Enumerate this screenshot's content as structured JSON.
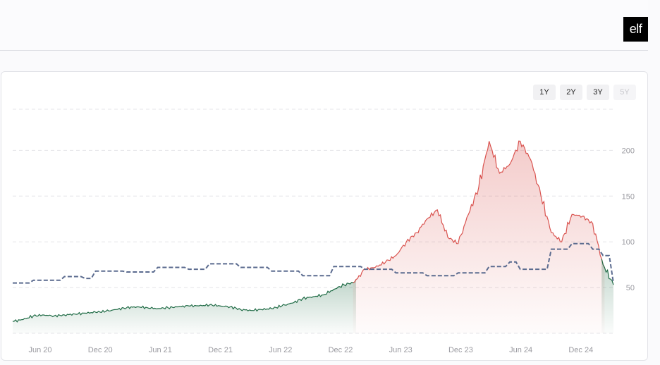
{
  "header": {
    "logo_text": "elf"
  },
  "range_buttons": [
    {
      "label": "1Y",
      "enabled": true
    },
    {
      "label": "2Y",
      "enabled": true
    },
    {
      "label": "3Y",
      "enabled": true
    },
    {
      "label": "5Y",
      "enabled": false
    }
  ],
  "colors": {
    "up_line": "#1f6b45",
    "down_line": "#d9534f",
    "benchmark_line": "#5b6b8f",
    "grid": "#e4e4e8"
  },
  "chart_data": {
    "type": "line",
    "x_ticks": [
      "Jun 20",
      "Dec 20",
      "Jun 21",
      "Dec 21",
      "Jun 22",
      "Dec 22",
      "Jun 23",
      "Dec 23",
      "Jun 24",
      "Dec 24"
    ],
    "y_ticks": [
      50,
      100,
      150,
      200
    ],
    "x_range": [
      "2020-04",
      "2025-02"
    ],
    "ylim": [
      0,
      245
    ],
    "grid": true,
    "series": [
      {
        "style": "solid",
        "points": [
          [
            "2020-04",
            13
          ],
          [
            "2020-05",
            15
          ],
          [
            "2020-06",
            19
          ],
          [
            "2020-07",
            20
          ],
          [
            "2020-08",
            19
          ],
          [
            "2020-09",
            20
          ],
          [
            "2020-10",
            21
          ],
          [
            "2020-11",
            22
          ],
          [
            "2020-12",
            23
          ],
          [
            "2021-01",
            24
          ],
          [
            "2021-02",
            26
          ],
          [
            "2021-03",
            28
          ],
          [
            "2021-04",
            29
          ],
          [
            "2021-05",
            28
          ],
          [
            "2021-06",
            27
          ],
          [
            "2021-07",
            28
          ],
          [
            "2021-08",
            29
          ],
          [
            "2021-09",
            30
          ],
          [
            "2021-10",
            30
          ],
          [
            "2021-11",
            31
          ],
          [
            "2021-12",
            30
          ],
          [
            "2022-01",
            29
          ],
          [
            "2022-02",
            26
          ],
          [
            "2022-03",
            25
          ],
          [
            "2022-04",
            26
          ],
          [
            "2022-05",
            27
          ],
          [
            "2022-06",
            30
          ],
          [
            "2022-07",
            33
          ],
          [
            "2022-08",
            38
          ],
          [
            "2022-09",
            40
          ],
          [
            "2022-10",
            42
          ],
          [
            "2022-11",
            48
          ],
          [
            "2022-12",
            53
          ],
          [
            "2023-01",
            56
          ],
          [
            "2023-02",
            70
          ],
          [
            "2023-03",
            72
          ],
          [
            "2023-04",
            78
          ],
          [
            "2023-05",
            85
          ],
          [
            "2023-06",
            100
          ],
          [
            "2023-07",
            110
          ],
          [
            "2023-08",
            125
          ],
          [
            "2023-09",
            135
          ],
          [
            "2023-10",
            105
          ],
          [
            "2023-11",
            98
          ],
          [
            "2023-12",
            130
          ],
          [
            "2024-01",
            160
          ],
          [
            "2024-02",
            210
          ],
          [
            "2024-03",
            175
          ],
          [
            "2024-04",
            185
          ],
          [
            "2024-05",
            210
          ],
          [
            "2024-06",
            190
          ],
          [
            "2024-07",
            150
          ],
          [
            "2024-08",
            110
          ],
          [
            "2024-09",
            100
          ],
          [
            "2024-10",
            130
          ],
          [
            "2024-11",
            128
          ],
          [
            "2024-12",
            120
          ],
          [
            "2025-01",
            75
          ],
          [
            "2025-02",
            53
          ]
        ]
      },
      {
        "style": "dashed",
        "points": [
          [
            "2020-04",
            55
          ],
          [
            "2020-06",
            58
          ],
          [
            "2020-09",
            62
          ],
          [
            "2020-11",
            60
          ],
          [
            "2020-12",
            68
          ],
          [
            "2021-03",
            67
          ],
          [
            "2021-06",
            72
          ],
          [
            "2021-09",
            70
          ],
          [
            "2021-11",
            76
          ],
          [
            "2022-02",
            72
          ],
          [
            "2022-05",
            68
          ],
          [
            "2022-08",
            63
          ],
          [
            "2022-11",
            73
          ],
          [
            "2023-02",
            70
          ],
          [
            "2023-05",
            66
          ],
          [
            "2023-08",
            63
          ],
          [
            "2023-11",
            66
          ],
          [
            "2024-02",
            73
          ],
          [
            "2024-04",
            78
          ],
          [
            "2024-05",
            70
          ],
          [
            "2024-08",
            92
          ],
          [
            "2024-10",
            98
          ],
          [
            "2024-12",
            92
          ],
          [
            "2025-01",
            85
          ],
          [
            "2025-02",
            55
          ]
        ]
      }
    ]
  }
}
